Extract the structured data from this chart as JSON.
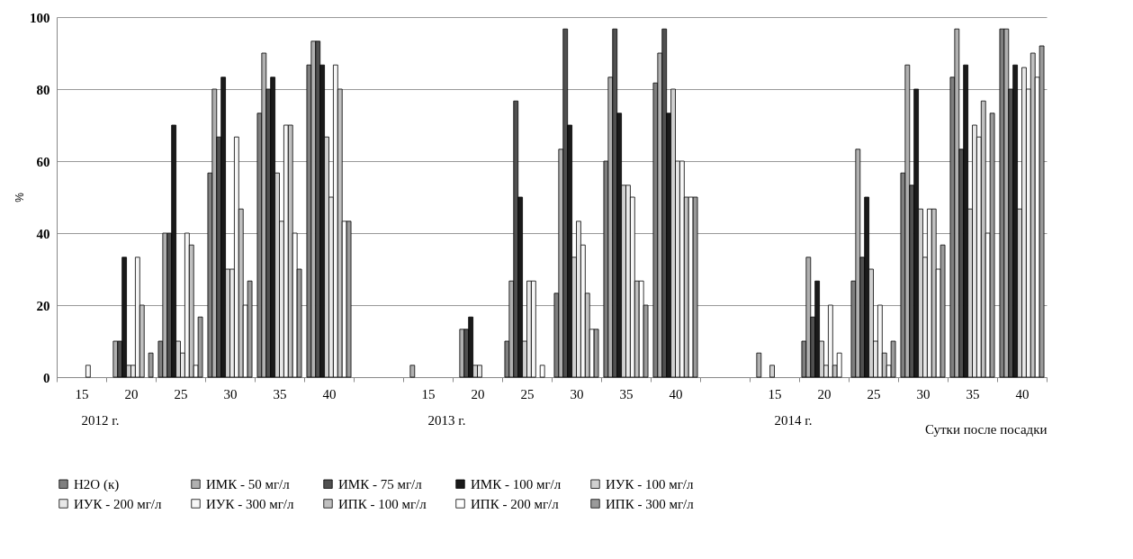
{
  "chart_data": {
    "type": "bar",
    "xlabel": "Сутки после посадки",
    "ylabel": "%",
    "categories": [
      "15",
      "20",
      "25",
      "30",
      "35",
      "40",
      null,
      "15",
      "20",
      "25",
      "30",
      "35",
      "40",
      null,
      "15",
      "20",
      "25",
      "30",
      "35",
      "40"
    ],
    "series": [
      {
        "name": "H2O (к)",
        "color": "#7f7f7f",
        "values": [
          null,
          null,
          10,
          56.7,
          73.3,
          86.7,
          null,
          null,
          null,
          10,
          23.3,
          60,
          81.7,
          null,
          null,
          10,
          26.7,
          56.7,
          83.3,
          96.7
        ]
      },
      {
        "name": "ИМК - 50 мг/л",
        "color": "#b0b0b0",
        "values": [
          null,
          10,
          40,
          80,
          90,
          93.3,
          null,
          3.3,
          13.3,
          26.7,
          63.3,
          83.3,
          90,
          null,
          6.7,
          33.3,
          63.3,
          86.7,
          96.7,
          96.7
        ]
      },
      {
        "name": "ИМК - 75 мг/л",
        "color": "#505050",
        "values": [
          null,
          10,
          40,
          66.7,
          80,
          93.3,
          null,
          null,
          13.3,
          76.7,
          96.7,
          96.7,
          96.7,
          null,
          null,
          16.7,
          33.3,
          53.3,
          63.3,
          80
        ]
      },
      {
        "name": "ИМК - 100 мг/л",
        "color": "#1a1a1a",
        "values": [
          null,
          33.3,
          70,
          83.3,
          83.3,
          86.7,
          null,
          null,
          16.7,
          50,
          70,
          73.3,
          73.3,
          null,
          null,
          26.7,
          50,
          80,
          86.7,
          86.7
        ]
      },
      {
        "name": "ИУК - 100 мг/л",
        "color": "#d0d0d0",
        "values": [
          null,
          3.3,
          10,
          30,
          56.7,
          66.7,
          null,
          null,
          3.3,
          10,
          33.3,
          53.3,
          80,
          null,
          3.3,
          10,
          30,
          46.7,
          46.7,
          46.7
        ]
      },
      {
        "name": "ИУК - 200 мг/л",
        "color": "#e8e8e8",
        "values": [
          null,
          3.3,
          6.7,
          30,
          43.3,
          50,
          null,
          null,
          3.3,
          26.7,
          43.3,
          53.3,
          60,
          null,
          null,
          3.3,
          10,
          33.3,
          70,
          86
        ]
      },
      {
        "name": "ИУК - 300 мг/л",
        "color": "#f7f7f7",
        "values": [
          3.3,
          33.3,
          40,
          66.7,
          70,
          86.7,
          null,
          null,
          null,
          26.7,
          36.7,
          50,
          60,
          null,
          null,
          20,
          20,
          46.7,
          66.7,
          80
        ]
      },
      {
        "name": "ИПК - 100 мг/л",
        "color": "#c0c0c0",
        "values": [
          null,
          20,
          36.7,
          46.7,
          70,
          80,
          null,
          null,
          null,
          null,
          23.3,
          26.7,
          50,
          null,
          null,
          3.3,
          6.7,
          46.7,
          76.7,
          90
        ]
      },
      {
        "name": "ИПК - 200 мг/л",
        "color": "#ffffff",
        "values": [
          null,
          null,
          3.3,
          20,
          40,
          43.3,
          null,
          null,
          null,
          3.3,
          13.3,
          26.7,
          50,
          null,
          null,
          6.7,
          3.3,
          30,
          40,
          83.3
        ]
      },
      {
        "name": "ИПК - 300 мг/л",
        "color": "#9a9a9a",
        "values": [
          null,
          6.7,
          16.7,
          26.7,
          30,
          43.3,
          null,
          null,
          null,
          null,
          13.3,
          20,
          50,
          null,
          null,
          null,
          10,
          36.7,
          73.3,
          92
        ]
      }
    ],
    "annotations": [
      "2012 г.",
      "2013 г.",
      "2014 г."
    ],
    "ylim": [
      0,
      100
    ],
    "yticks": [
      0,
      20,
      40,
      60,
      80,
      100
    ],
    "grid": "y",
    "legend": "bottom"
  }
}
